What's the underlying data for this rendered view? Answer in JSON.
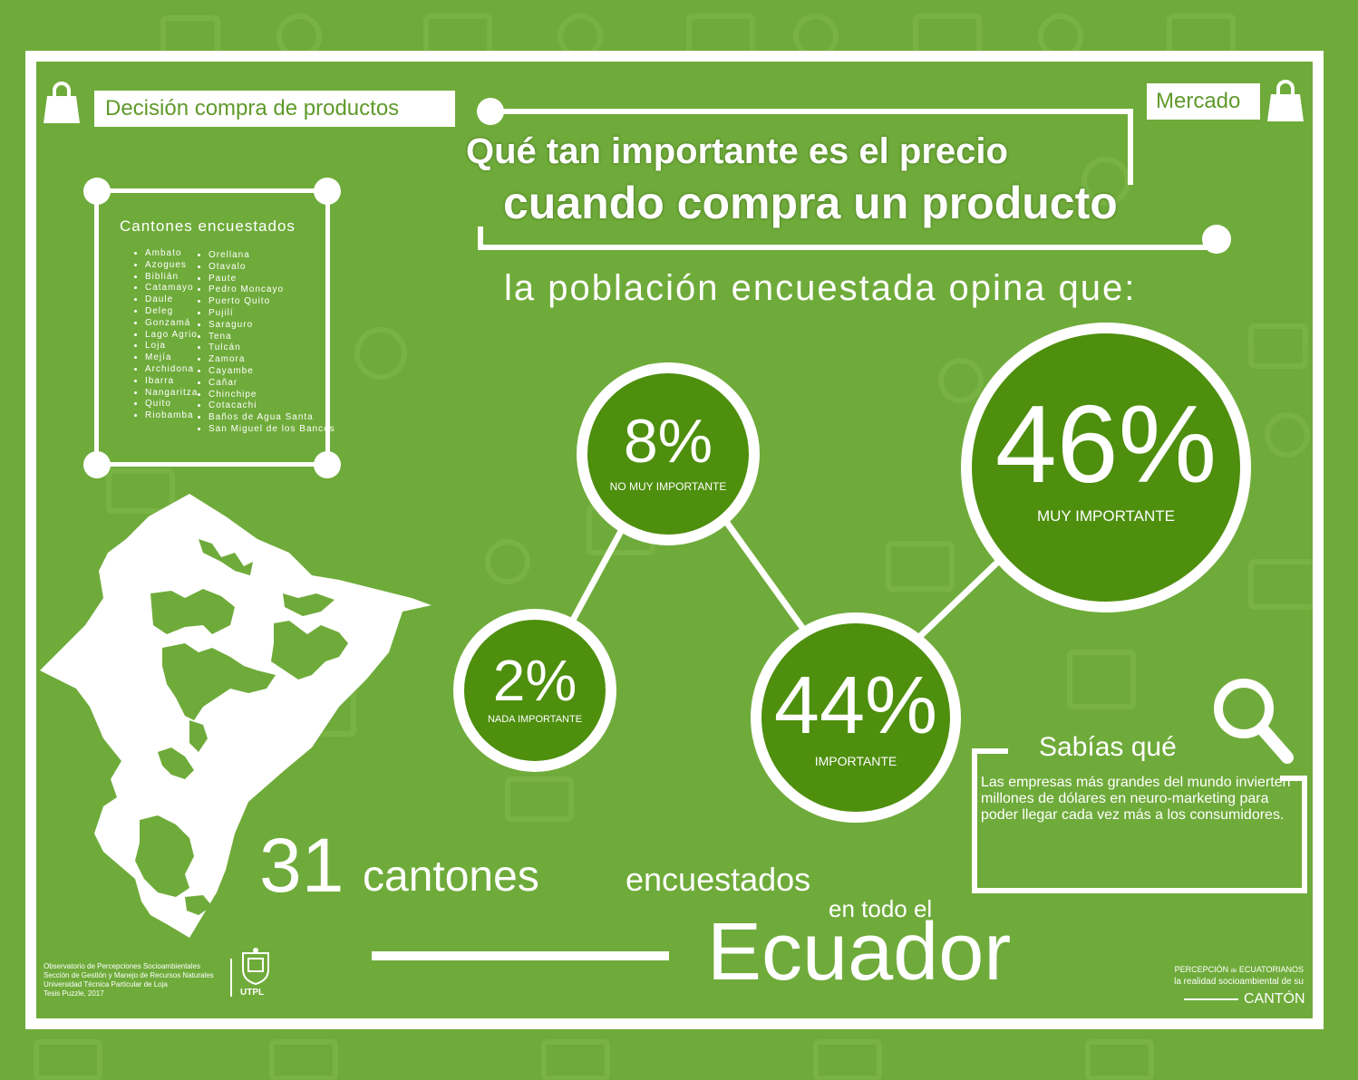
{
  "header": {
    "left_label": "Decisión compra de productos",
    "right_label": "Mercado"
  },
  "title": {
    "line1": "Qué tan importante es el precio",
    "line2": "cuando compra un producto",
    "subtitle": "la población encuestada opina que:"
  },
  "cantons": {
    "title": "Cantones encuestados",
    "col1": [
      "Ambato",
      "Azogues",
      "Biblián",
      "Catamayo",
      "Daule",
      "Deleg",
      "Gonzamá",
      "Lago Agrio",
      "Loja",
      "Mejía",
      "Archidona",
      "Ibarra",
      "Nangaritza",
      "Quito",
      "Riobamba"
    ],
    "col2": [
      "Orellana",
      "Otavalo",
      "Paute",
      "Pedro Moncayo",
      "Puerto Quito",
      "Pujilí",
      "Saraguro",
      "Tena",
      "Tulcán",
      "Zamora",
      "Cayambe",
      "Cañar",
      "Chinchipe",
      "Cotacachi",
      "Baños de Agua Santa",
      "San Miguel de los Bancos"
    ]
  },
  "results": [
    {
      "value": "8%",
      "label": "NO MUY IMPORTANTE",
      "percent": 8
    },
    {
      "value": "46%",
      "label": "MUY IMPORTANTE",
      "percent": 46
    },
    {
      "value": "2%",
      "label": "NADA IMPORTANTE",
      "percent": 2
    },
    {
      "value": "44%",
      "label": "IMPORTANTE",
      "percent": 44
    }
  ],
  "summary": {
    "count": "31",
    "word1": "cantones",
    "word2": "encuestados",
    "word3": "en todo el",
    "country": "Ecuador"
  },
  "sabias": {
    "title": "Sabías qué",
    "text": "Las empresas más grandes del mundo invierten millones de dólares en neuro-marketing para poder llegar cada vez más a los consumidores."
  },
  "credits": {
    "line1": "Observatorio de Percepciones Socioambientales",
    "line2": "Sección de Gestión y Manejo de Recursos Naturales",
    "line3": "Universidad Técnica Particular de Loja",
    "line4": "Tesis Puzzle, 2017",
    "logo_text": "UTPL"
  },
  "brand": {
    "line1a": "PERCEPCIÓN",
    "line1b": "de",
    "line1c": "ECUATORIANOS",
    "line2": "la realidad socioambiental de su",
    "line3": "CANTÓN"
  },
  "colors": {
    "background": "#6fab3a",
    "circle_fill": "#4e8f0e",
    "label_text": "#5f9a2b"
  }
}
